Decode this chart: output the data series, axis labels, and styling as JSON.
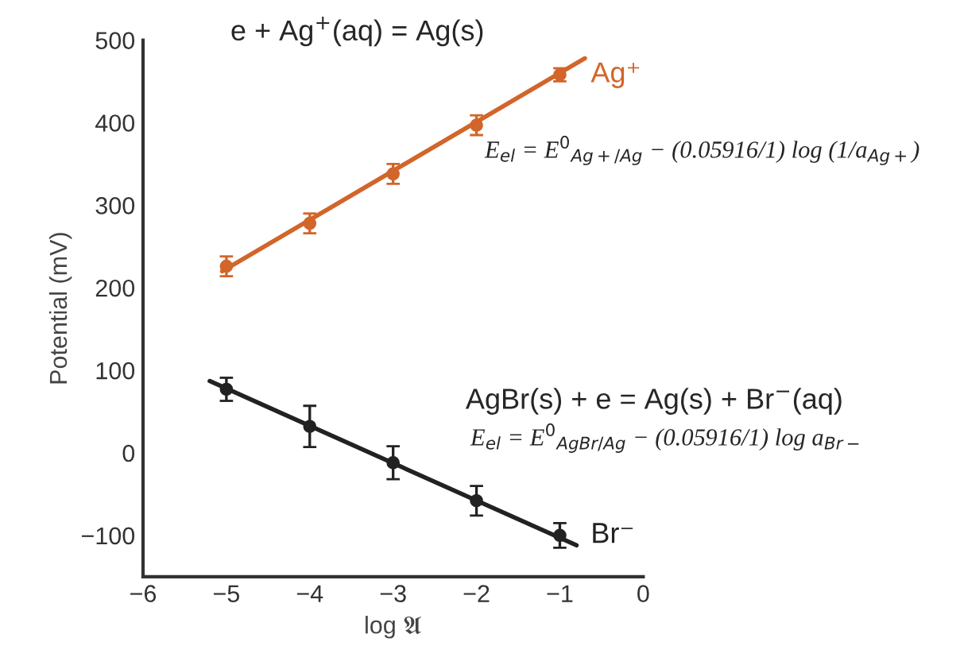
{
  "chart_data": {
    "type": "scatter",
    "xlabel": "log 𝔄",
    "ylabel": "Potential (mV)",
    "xlim": [
      -6,
      0
    ],
    "xticks": [
      -6,
      -5,
      -4,
      -3,
      -2,
      -1,
      0
    ],
    "ylim": [
      -150,
      500
    ],
    "yticks": [
      -100,
      0,
      100,
      200,
      300,
      400,
      500
    ],
    "grid": false,
    "legend": false,
    "series": [
      {
        "name": "Ag⁺",
        "marker": "circle",
        "color": "#d2652a",
        "x": [
          -5,
          -4,
          -3,
          -2,
          -1
        ],
        "values": [
          226,
          278,
          338,
          397,
          458
        ],
        "errors": [
          12,
          12,
          12,
          12,
          8
        ]
      },
      {
        "type": "line",
        "color": "#d2652a",
        "x": [
          -5.05,
          -0.7
        ],
        "values": [
          220,
          478
        ]
      },
      {
        "name": "Br⁻",
        "marker": "circle",
        "color": "#222222",
        "x": [
          -5,
          -4,
          -3,
          -2,
          -1
        ],
        "values": [
          77,
          32,
          -12,
          -58,
          -100
        ],
        "errors": [
          14,
          25,
          20,
          18,
          15
        ]
      },
      {
        "type": "line",
        "color": "#222222",
        "x": [
          -5.2,
          -0.8
        ],
        "values": [
          87,
          -112
        ]
      }
    ],
    "annotations": [
      "e + Ag$^{+}$(aq) = Ag(s)",
      "E$_{el}$ = E$^{0}$$_{Ag+/Ag}$ − (0.05916/1) log (1/a$_{Ag+}$)",
      "AgBr(s) + e = Ag(s) + Br$^{−}$(aq)",
      "E$_{el}$ = E$^{0}$$_{AgBr/Ag}$ − (0.05916/1) log a$_{Br−}$"
    ]
  }
}
